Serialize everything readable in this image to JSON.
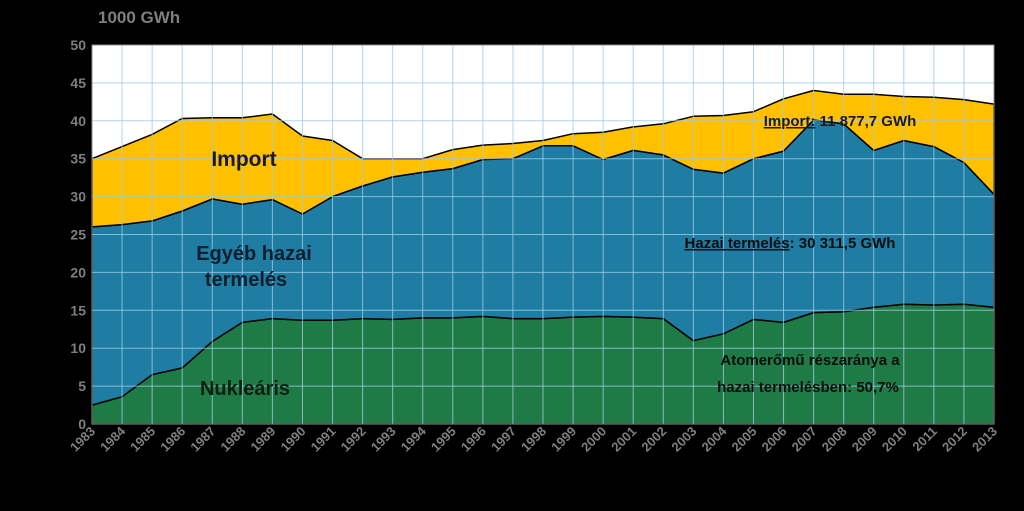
{
  "chart_data": {
    "type": "area",
    "stacked": true,
    "unit_label": "1000 GWh",
    "ylim": [
      0,
      50
    ],
    "yticks": [
      0,
      5,
      10,
      15,
      20,
      25,
      30,
      35,
      40,
      45,
      50
    ],
    "grid": true,
    "x": [
      "1983",
      "1984",
      "1985",
      "1986",
      "1987",
      "1988",
      "1989",
      "1990",
      "1991",
      "1992",
      "1993",
      "1994",
      "1995",
      "1996",
      "1997",
      "1998",
      "1999",
      "2000",
      "2001",
      "2002",
      "2003",
      "2004",
      "2005",
      "2006",
      "2007",
      "2008",
      "2009",
      "2010",
      "2011",
      "2012",
      "2013"
    ],
    "series": [
      {
        "name": "Nukleáris",
        "color": "#1e7b45",
        "values": [
          2.5,
          3.6,
          6.5,
          7.4,
          10.9,
          13.4,
          13.9,
          13.7,
          13.7,
          13.9,
          13.8,
          14.0,
          14.0,
          14.2,
          13.9,
          13.9,
          14.1,
          14.2,
          14.1,
          13.9,
          11.0,
          11.9,
          13.8,
          13.4,
          14.7,
          14.8,
          15.4,
          15.8,
          15.7,
          15.8,
          15.4
        ]
      },
      {
        "name": "Egyéb hazai termelés",
        "color": "#1f7ca3",
        "values": [
          23.5,
          22.7,
          20.3,
          20.7,
          18.8,
          15.6,
          15.7,
          14.0,
          16.3,
          17.5,
          18.8,
          19.2,
          19.7,
          20.7,
          21.1,
          22.8,
          22.6,
          20.7,
          22.0,
          21.6,
          22.6,
          21.2,
          21.2,
          22.6,
          25.4,
          24.8,
          20.7,
          21.6,
          20.9,
          18.7,
          14.9
        ]
      },
      {
        "name": "Import",
        "color": "#ffc000",
        "values": [
          9.0,
          10.3,
          11.4,
          12.2,
          10.7,
          11.4,
          11.3,
          10.3,
          7.4,
          3.6,
          2.4,
          1.8,
          2.5,
          1.9,
          2.0,
          0.7,
          1.6,
          3.6,
          3.1,
          4.1,
          7.0,
          7.6,
          6.2,
          6.9,
          3.9,
          3.9,
          7.4,
          5.8,
          6.5,
          8.3,
          11.9
        ]
      }
    ],
    "labels": {
      "import": "Import",
      "egyeb_line1": "Egyéb hazai",
      "egyeb_line2": "termelés",
      "nuklearis": "Nukleáris",
      "import_note_u": "Import:",
      "import_note_v": " 11 877,7 GWh",
      "hazai_note_u": "Hazai termelés",
      "hazai_note_v": ": 30 311,5 GWh",
      "atom_line1": "Atomerőmű részaránya a",
      "atom_line2": "hazai termelésben: 50,7%"
    }
  }
}
